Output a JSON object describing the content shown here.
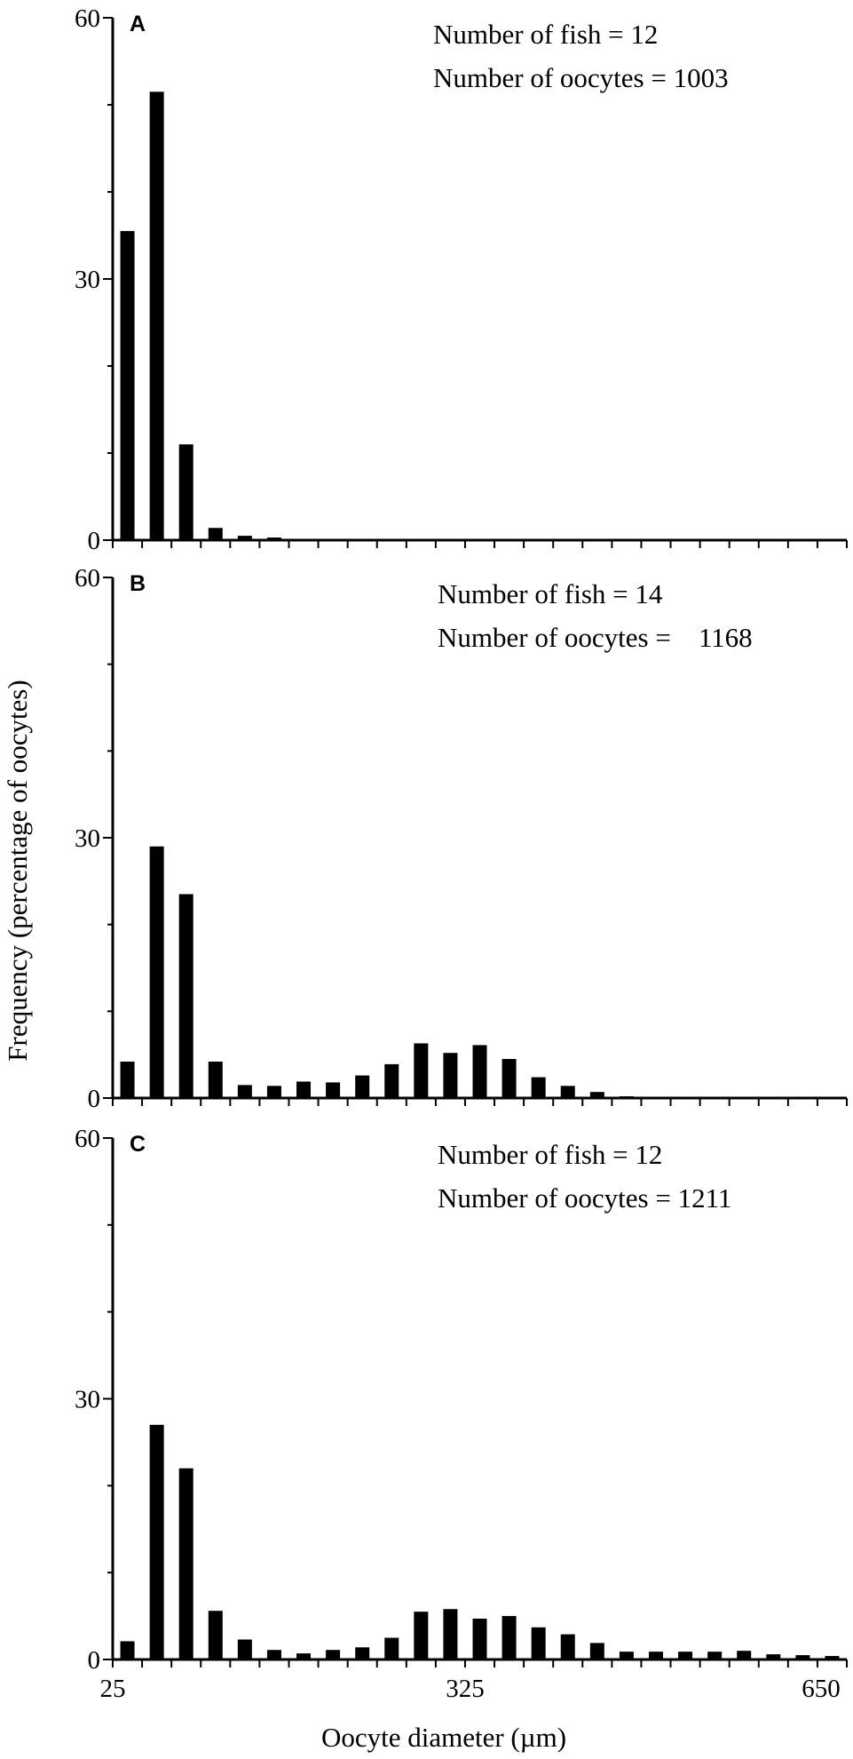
{
  "figure": {
    "ylabel": "Frequency (percentage of oocytes)",
    "xlabel": "Oocyte diameter (µm)",
    "x_tick_labels": [
      "25",
      "325",
      "650"
    ]
  },
  "chart_data": [
    {
      "type": "bar",
      "panel_label": "A",
      "annotation_lines": [
        "Number of fish = 12",
        "Number of oocytes = 1003"
      ],
      "y_tick_labels": [
        "60",
        "30",
        "0"
      ],
      "ylim": [
        0,
        60
      ],
      "xlim": [
        25,
        650
      ],
      "x": [
        37.5,
        62.5,
        87.5,
        112.5,
        137.5,
        162.5
      ],
      "values": [
        35.5,
        51.5,
        11,
        1.4,
        0.5,
        0.3
      ],
      "grid": false
    },
    {
      "type": "bar",
      "panel_label": "B",
      "annotation_lines": [
        "Number of fish = 14",
        "Number of oocytes =    1168"
      ],
      "y_tick_labels": [
        "60",
        "30",
        "0"
      ],
      "ylim": [
        0,
        60
      ],
      "xlim": [
        25,
        650
      ],
      "x": [
        37.5,
        62.5,
        87.5,
        112.5,
        137.5,
        162.5,
        187.5,
        212.5,
        237.5,
        262.5,
        287.5,
        312.5,
        337.5,
        362.5,
        387.5,
        412.5,
        437.5,
        462.5,
        487.5
      ],
      "values": [
        4.2,
        29,
        23.5,
        4.2,
        1.5,
        1.4,
        1.9,
        1.8,
        2.6,
        3.9,
        6.3,
        5.2,
        6.1,
        4.5,
        2.4,
        1.4,
        0.7,
        0.2,
        0.15
      ],
      "grid": false
    },
    {
      "type": "bar",
      "panel_label": "C",
      "annotation_lines": [
        "Number of fish = 12",
        "Number of oocytes = 1211"
      ],
      "y_tick_labels": [
        "60",
        "30",
        "0"
      ],
      "ylim": [
        0,
        60
      ],
      "xlim": [
        25,
        650
      ],
      "x": [
        37.5,
        62.5,
        87.5,
        112.5,
        137.5,
        162.5,
        187.5,
        212.5,
        237.5,
        262.5,
        287.5,
        312.5,
        337.5,
        362.5,
        387.5,
        412.5,
        437.5,
        462.5,
        487.5,
        512.5,
        537.5,
        562.5,
        587.5,
        612.5,
        637.5
      ],
      "values": [
        2.1,
        27,
        22,
        5.6,
        2.3,
        1.1,
        0.7,
        1.1,
        1.4,
        2.5,
        5.5,
        5.8,
        4.7,
        5.0,
        3.7,
        2.9,
        1.9,
        0.9,
        0.9,
        0.9,
        0.9,
        1.0,
        0.6,
        0.5,
        0.4
      ],
      "grid": false
    }
  ]
}
